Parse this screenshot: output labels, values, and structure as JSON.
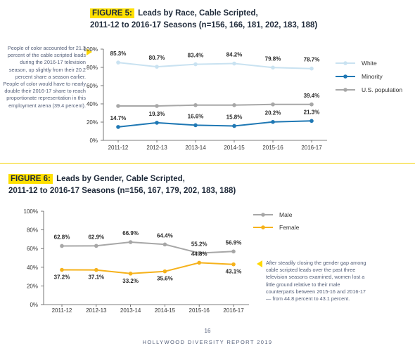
{
  "figure5": {
    "tag": "FIGURE 5:",
    "title_line1": "Leads by Race, Cable Scripted,",
    "title_line2": "2011-12 to 2016-17 Seasons (n=156, 166, 181, 202, 183, 188)",
    "note": "People of color accounted for 21.3 percent of the cable scripted leads during the 2016-17 television season, up slightly from their 20.2 percent share a season earlier. People of color would have to nearly double their 2016-17 share to reach proportionate representation in this employment arena (39.4 percent)."
  },
  "figure6": {
    "tag": "FIGURE 6:",
    "title_line1": "Leads by Gender, Cable Scripted,",
    "title_line2": "2011-12 to 2016-17 Seasons (n=156, 167, 179, 202, 183, 188)",
    "note": "After steadily closing the gender gap among cable scripted leads over the past three television seasons examined, women lost a little ground relative to their male counterparts between 2015-16 and 2016-17 — from 44.8 percent to 43.1 percent."
  },
  "footer": {
    "page_number": "16",
    "report_title": "HOLLYWOOD DIVERSITY REPORT 2019"
  },
  "chart_data": [
    {
      "type": "line",
      "title": "Leads by Race, Cable Scripted, 2011-12 to 2016-17 Seasons (n=156, 166, 181, 202, 183, 188)",
      "categories": [
        "2011-12",
        "2012-13",
        "2013-14",
        "2014-15",
        "2015-16",
        "2016-17"
      ],
      "ylim": [
        0,
        100
      ],
      "yticks": [
        "0%",
        "20%",
        "40%",
        "60%",
        "80%",
        "100%"
      ],
      "grid": false,
      "legend": "right",
      "series": [
        {
          "name": "White",
          "color": "#c9e2f1",
          "values": [
            85.3,
            80.7,
            83.4,
            84.2,
            79.8,
            78.7
          ],
          "labels": [
            "85.3%",
            "80.7%",
            "83.4%",
            "84.2%",
            "79.8%",
            "78.7%"
          ]
        },
        {
          "name": "Minority",
          "color": "#1f78b4",
          "values": [
            14.7,
            19.3,
            16.6,
            15.8,
            20.2,
            21.3
          ],
          "labels": [
            "14.7%",
            "19.3%",
            "16.6%",
            "15.8%",
            "20.2%",
            "21.3%"
          ]
        },
        {
          "name": "U.S. population",
          "color": "#a7a7a7",
          "values": [
            37.7,
            37.7,
            38.6,
            38.6,
            39.4,
            39.4
          ],
          "labels": [
            "",
            "",
            "",
            "",
            "",
            "39.4%"
          ]
        }
      ]
    },
    {
      "type": "line",
      "title": "Leads by Gender, Cable Scripted, 2011-12 to 2016-17 Seasons (n=156, 167, 179, 202, 183, 188)",
      "categories": [
        "2011-12",
        "2012-13",
        "2013-14",
        "2014-15",
        "2015-16",
        "2016-17"
      ],
      "ylim": [
        0,
        100
      ],
      "yticks": [
        "0%",
        "20%",
        "40%",
        "60%",
        "80%",
        "100%"
      ],
      "grid": false,
      "legend": "right",
      "series": [
        {
          "name": "Male",
          "color": "#a7a7a7",
          "values": [
            62.8,
            62.9,
            66.9,
            64.4,
            55.2,
            56.9
          ],
          "labels": [
            "62.8%",
            "62.9%",
            "66.9%",
            "64.4%",
            "55.2%",
            "56.9%"
          ]
        },
        {
          "name": "Female",
          "color": "#f6b21b",
          "values": [
            37.2,
            37.1,
            33.2,
            35.6,
            44.8,
            43.1
          ],
          "labels": [
            "37.2%",
            "37.1%",
            "33.2%",
            "35.6%",
            "44.8%",
            "43.1%"
          ]
        }
      ]
    }
  ]
}
